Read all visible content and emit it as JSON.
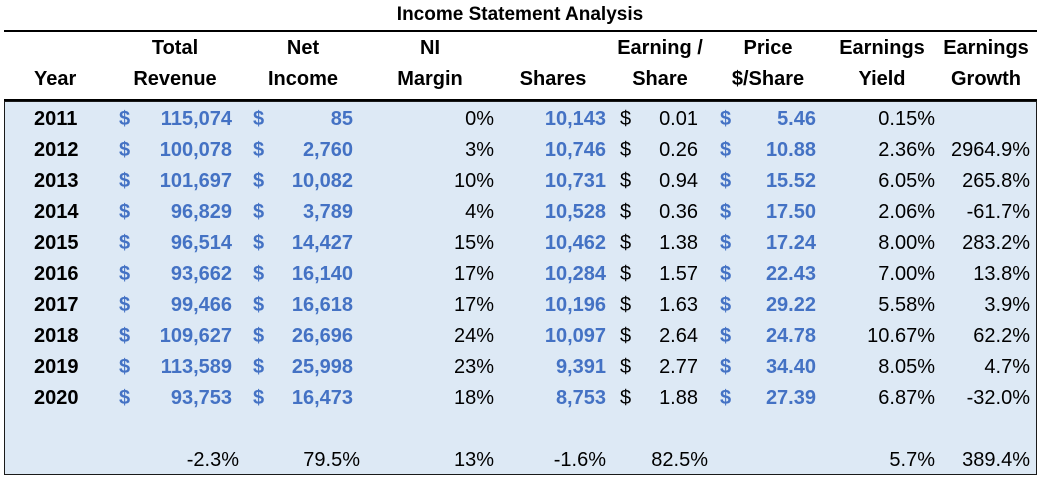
{
  "title": "Income Statement Analysis",
  "headers": {
    "year": "Year",
    "total_revenue": [
      "Total",
      "Revenue"
    ],
    "net_income": [
      "Net",
      "Income"
    ],
    "ni_margin": [
      "NI",
      "Margin"
    ],
    "shares": "Shares",
    "eps": [
      "Earning /",
      "Share"
    ],
    "price": [
      "Price",
      "$/Share"
    ],
    "earnings_yield": [
      "Earnings",
      "Yield"
    ],
    "earnings_growth": [
      "Earnings",
      "Growth"
    ]
  },
  "currency_symbol": "$",
  "colors": {
    "accent_blue": "#4472c4",
    "panel_bg": "#dde9f5"
  },
  "rows": [
    {
      "year": "2011",
      "revenue": "115,074",
      "net_income": "85",
      "margin": "0%",
      "shares": "10,143",
      "eps": "0.01",
      "price": "5.46",
      "yield": "0.15%",
      "growth": ""
    },
    {
      "year": "2012",
      "revenue": "100,078",
      "net_income": "2,760",
      "margin": "3%",
      "shares": "10,746",
      "eps": "0.26",
      "price": "10.88",
      "yield": "2.36%",
      "growth": "2964.9%"
    },
    {
      "year": "2013",
      "revenue": "101,697",
      "net_income": "10,082",
      "margin": "10%",
      "shares": "10,731",
      "eps": "0.94",
      "price": "15.52",
      "yield": "6.05%",
      "growth": "265.8%"
    },
    {
      "year": "2014",
      "revenue": "96,829",
      "net_income": "3,789",
      "margin": "4%",
      "shares": "10,528",
      "eps": "0.36",
      "price": "17.50",
      "yield": "2.06%",
      "growth": "-61.7%"
    },
    {
      "year": "2015",
      "revenue": "96,514",
      "net_income": "14,427",
      "margin": "15%",
      "shares": "10,462",
      "eps": "1.38",
      "price": "17.24",
      "yield": "8.00%",
      "growth": "283.2%"
    },
    {
      "year": "2016",
      "revenue": "93,662",
      "net_income": "16,140",
      "margin": "17%",
      "shares": "10,284",
      "eps": "1.57",
      "price": "22.43",
      "yield": "7.00%",
      "growth": "13.8%"
    },
    {
      "year": "2017",
      "revenue": "99,466",
      "net_income": "16,618",
      "margin": "17%",
      "shares": "10,196",
      "eps": "1.63",
      "price": "29.22",
      "yield": "5.58%",
      "growth": "3.9%"
    },
    {
      "year": "2018",
      "revenue": "109,627",
      "net_income": "26,696",
      "margin": "24%",
      "shares": "10,097",
      "eps": "2.64",
      "price": "24.78",
      "yield": "10.67%",
      "growth": "62.2%"
    },
    {
      "year": "2019",
      "revenue": "113,589",
      "net_income": "25,998",
      "margin": "23%",
      "shares": "9,391",
      "eps": "2.77",
      "price": "34.40",
      "yield": "8.05%",
      "growth": "4.7%"
    },
    {
      "year": "2020",
      "revenue": "93,753",
      "net_income": "16,473",
      "margin": "18%",
      "shares": "8,753",
      "eps": "1.88",
      "price": "27.39",
      "yield": "6.87%",
      "growth": "-32.0%"
    }
  ],
  "summary": {
    "revenue": "-2.3%",
    "net_income": "79.5%",
    "margin": "13%",
    "shares": "-1.6%",
    "eps": "82.5%",
    "yield": "5.7%",
    "growth": "389.4%"
  }
}
